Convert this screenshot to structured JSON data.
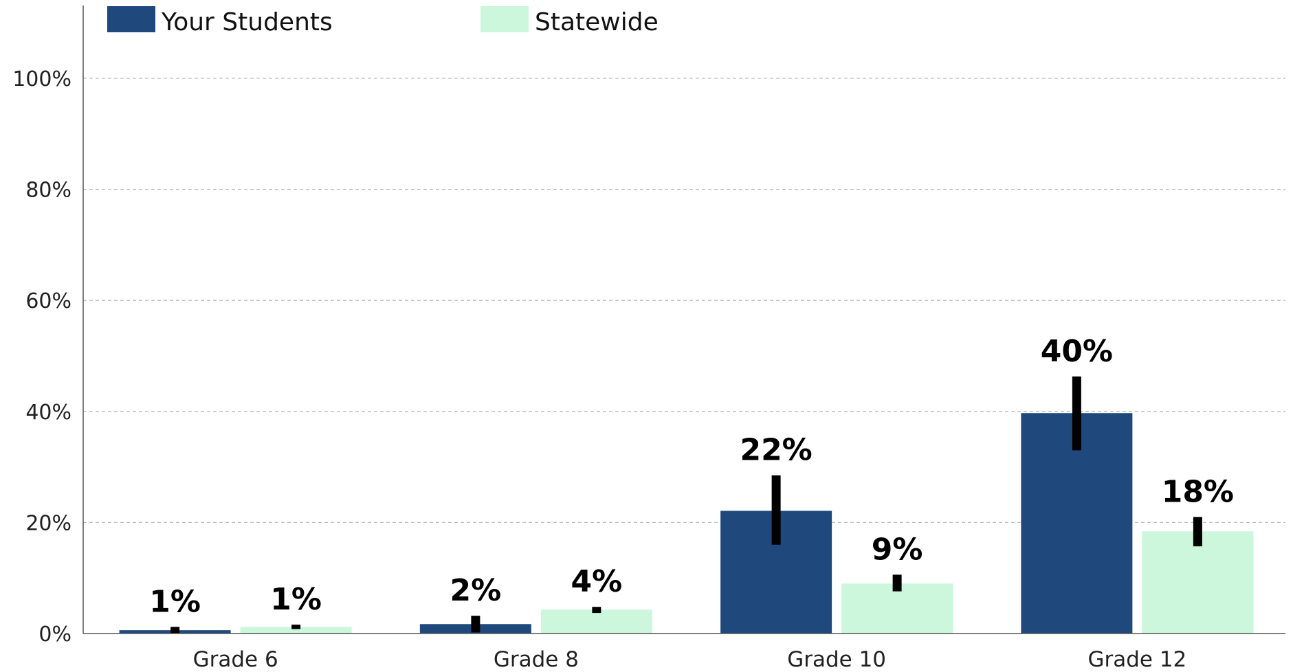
{
  "chart_data": {
    "type": "bar",
    "categories": [
      "Grade 6",
      "Grade 8",
      "Grade 10",
      "Grade 12"
    ],
    "series": [
      {
        "name": "Your Students",
        "color": "#1f497d",
        "values": [
          0.6,
          1.7,
          22.1,
          39.7
        ],
        "labels": [
          "1%",
          "2%",
          "22%",
          "40%"
        ],
        "error_low": [
          0.0,
          0.2,
          16.0,
          33.0
        ],
        "error_high": [
          1.2,
          3.2,
          28.5,
          46.3
        ]
      },
      {
        "name": "Statewide",
        "color": "#ccf7dc",
        "values": [
          1.2,
          4.3,
          9.0,
          18.4
        ],
        "labels": [
          "1%",
          "4%",
          "9%",
          "18%"
        ],
        "error_low": [
          0.8,
          3.7,
          7.6,
          15.7
        ],
        "error_high": [
          1.6,
          4.8,
          10.6,
          21.0
        ]
      }
    ],
    "yticks": [
      0,
      20,
      40,
      60,
      80,
      100
    ],
    "ytick_labels": [
      "0%",
      "20%",
      "40%",
      "60%",
      "80%",
      "100%"
    ],
    "ylim": [
      0,
      100
    ],
    "grid": true,
    "legend_position": "top-left"
  }
}
